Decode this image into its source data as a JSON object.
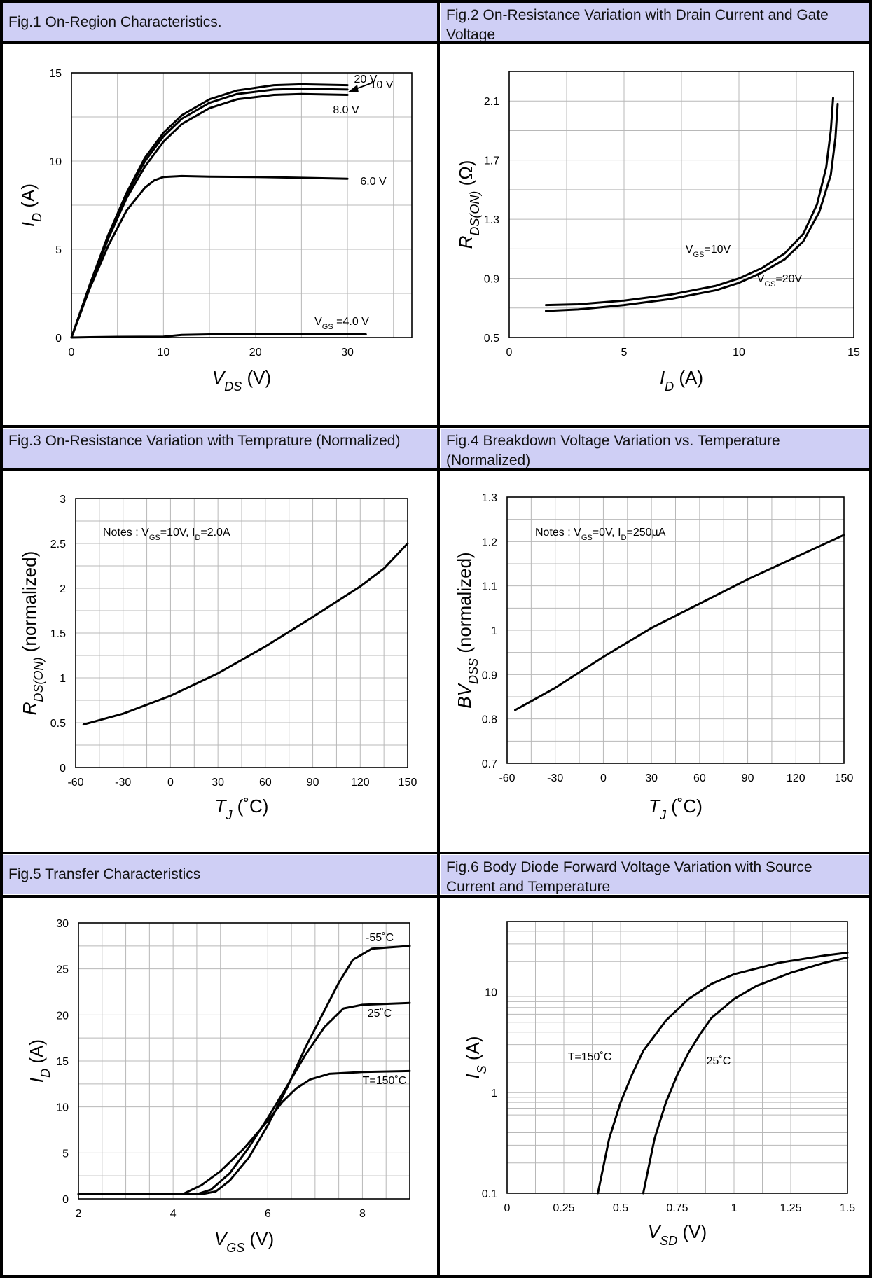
{
  "figures": [
    {
      "id": "fig1",
      "title": "Fig.1 On-Region Characteristics.",
      "chart_data": {
        "type": "line",
        "xlabel": "V_DS (V)",
        "ylabel": "I_D (A)",
        "xlim": [
          0,
          37
        ],
        "ylim": [
          0,
          15
        ],
        "x_ticks": [
          "0",
          "10",
          "20",
          "30"
        ],
        "y_ticks": [
          "0",
          "5",
          "10",
          "15"
        ],
        "grid": true,
        "series": [
          {
            "name": "20 V",
            "points": [
              [
                0,
                0
              ],
              [
                2,
                3
              ],
              [
                4,
                5.8
              ],
              [
                6,
                8.2
              ],
              [
                8,
                10.2
              ],
              [
                10,
                11.6
              ],
              [
                12,
                12.6
              ],
              [
                15,
                13.5
              ],
              [
                18,
                14
              ],
              [
                22,
                14.3
              ],
              [
                25,
                14.35
              ],
              [
                30,
                14.3
              ]
            ]
          },
          {
            "name": "10 V",
            "points": [
              [
                0,
                0
              ],
              [
                2,
                3
              ],
              [
                4,
                5.8
              ],
              [
                6,
                8.1
              ],
              [
                8,
                10
              ],
              [
                10,
                11.4
              ],
              [
                12,
                12.4
              ],
              [
                15,
                13.3
              ],
              [
                18,
                13.8
              ],
              [
                22,
                14.05
              ],
              [
                25,
                14.1
              ],
              [
                30,
                14.05
              ]
            ]
          },
          {
            "name": "8.0 V",
            "points": [
              [
                0,
                0
              ],
              [
                2,
                2.9
              ],
              [
                4,
                5.6
              ],
              [
                6,
                7.9
              ],
              [
                8,
                9.7
              ],
              [
                10,
                11.1
              ],
              [
                12,
                12.1
              ],
              [
                15,
                13
              ],
              [
                18,
                13.5
              ],
              [
                22,
                13.75
              ],
              [
                25,
                13.8
              ],
              [
                30,
                13.75
              ]
            ]
          },
          {
            "name": "6.0 V",
            "points": [
              [
                0,
                0
              ],
              [
                2,
                2.8
              ],
              [
                4,
                5.2
              ],
              [
                6,
                7.2
              ],
              [
                8,
                8.5
              ],
              [
                9,
                8.9
              ],
              [
                10,
                9.1
              ],
              [
                12,
                9.15
              ],
              [
                15,
                9.12
              ],
              [
                20,
                9.1
              ],
              [
                25,
                9.05
              ],
              [
                30,
                9
              ]
            ]
          },
          {
            "name": "V_GS =4.0 V",
            "points": [
              [
                0,
                0
              ],
              [
                2,
                0.02
              ],
              [
                5,
                0.04
              ],
              [
                10,
                0.05
              ],
              [
                12,
                0.15
              ],
              [
                15,
                0.18
              ],
              [
                20,
                0.18
              ],
              [
                32,
                0.18
              ]
            ]
          }
        ],
        "annotations": [
          "20 V",
          "10 V",
          "8.0 V",
          "6.0 V",
          "V_GS =4.0 V"
        ]
      }
    },
    {
      "id": "fig2",
      "title": "Fig.2 On-Resistance Variation with Drain Current and Gate Voltage",
      "chart_data": {
        "type": "line",
        "xlabel": "I_D (A)",
        "ylabel": "R_DS(ON) (Ω)",
        "xlim": [
          0,
          15
        ],
        "ylim": [
          0.5,
          2.3
        ],
        "x_ticks": [
          "0",
          "5",
          "10",
          "15"
        ],
        "y_ticks": [
          "0.5",
          "0.9",
          "1.3",
          "1.7",
          "2.1"
        ],
        "grid": true,
        "series": [
          {
            "name": "V_GS=10V",
            "points": [
              [
                1.6,
                0.72
              ],
              [
                3,
                0.725
              ],
              [
                5,
                0.75
              ],
              [
                7,
                0.79
              ],
              [
                9,
                0.85
              ],
              [
                10,
                0.9
              ],
              [
                11,
                0.97
              ],
              [
                12,
                1.07
              ],
              [
                12.8,
                1.2
              ],
              [
                13.4,
                1.4
              ],
              [
                13.8,
                1.65
              ],
              [
                14,
                1.9
              ],
              [
                14.1,
                2.12
              ]
            ]
          },
          {
            "name": "V_GS=20V",
            "points": [
              [
                1.6,
                0.68
              ],
              [
                3,
                0.69
              ],
              [
                5,
                0.72
              ],
              [
                7,
                0.76
              ],
              [
                9,
                0.82
              ],
              [
                10,
                0.87
              ],
              [
                11,
                0.94
              ],
              [
                12,
                1.03
              ],
              [
                12.8,
                1.15
              ],
              [
                13.5,
                1.35
              ],
              [
                14,
                1.6
              ],
              [
                14.2,
                1.85
              ],
              [
                14.3,
                2.08
              ]
            ]
          }
        ],
        "annotations": [
          "V_GS=10V",
          "V_GS=20V"
        ]
      }
    },
    {
      "id": "fig3",
      "title": "Fig.3 On-Resistance Variation with Temprature (Normalized)",
      "chart_data": {
        "type": "line",
        "xlabel": "T_J (˚C)",
        "ylabel": "R_DS(ON) (normalized)",
        "xlim": [
          -60,
          150
        ],
        "ylim": [
          0,
          3
        ],
        "x_ticks": [
          "-60",
          "-30",
          "0",
          "30",
          "60",
          "90",
          "120",
          "150"
        ],
        "y_ticks": [
          "0",
          "0.5",
          "1",
          "1.5",
          "2",
          "2.5",
          "3"
        ],
        "grid": true,
        "note": "Notes : V_GS=10V, I_D=2.0A",
        "series": [
          {
            "name": "",
            "points": [
              [
                -55,
                0.48
              ],
              [
                -30,
                0.6
              ],
              [
                0,
                0.8
              ],
              [
                30,
                1.05
              ],
              [
                60,
                1.35
              ],
              [
                90,
                1.68
              ],
              [
                120,
                2.02
              ],
              [
                135,
                2.22
              ],
              [
                150,
                2.5
              ]
            ]
          }
        ]
      }
    },
    {
      "id": "fig4",
      "title": "Fig.4 Breakdown Voltage Variation vs. Temperature (Normalized)",
      "chart_data": {
        "type": "line",
        "xlabel": "T_J (˚C)",
        "ylabel": "BV_DSS (normalized)",
        "xlim": [
          -60,
          150
        ],
        "ylim": [
          0.7,
          1.3
        ],
        "x_ticks": [
          "-60",
          "-30",
          "0",
          "30",
          "60",
          "90",
          "120",
          "150"
        ],
        "y_ticks": [
          "0.7",
          "0.8",
          "0.9",
          "1",
          "1.1",
          "1.2",
          "1.3"
        ],
        "grid": true,
        "note": "Notes : V_GS=0V, I_D=250µA",
        "series": [
          {
            "name": "",
            "points": [
              [
                -55,
                0.82
              ],
              [
                -30,
                0.87
              ],
              [
                0,
                0.94
              ],
              [
                30,
                1.005
              ],
              [
                60,
                1.06
              ],
              [
                90,
                1.115
              ],
              [
                120,
                1.165
              ],
              [
                150,
                1.215
              ]
            ]
          }
        ]
      }
    },
    {
      "id": "fig5",
      "title": "Fig.5 Transfer Characteristics",
      "chart_data": {
        "type": "line",
        "xlabel": "V_GS (V)",
        "ylabel": "I_D (A)",
        "xlim": [
          2,
          9
        ],
        "ylim": [
          0,
          30
        ],
        "x_ticks": [
          "2",
          "4",
          "6",
          "8"
        ],
        "y_ticks": [
          "0",
          "5",
          "10",
          "15",
          "20",
          "25",
          "30"
        ],
        "grid": true,
        "series": [
          {
            "name": "-55˚C",
            "points": [
              [
                2,
                0.5
              ],
              [
                4.6,
                0.5
              ],
              [
                4.9,
                0.8
              ],
              [
                5.2,
                2
              ],
              [
                5.6,
                4.5
              ],
              [
                6,
                8
              ],
              [
                6.4,
                12
              ],
              [
                6.8,
                16.5
              ],
              [
                7.2,
                20.5
              ],
              [
                7.5,
                23.5
              ],
              [
                7.8,
                26
              ],
              [
                8.2,
                27.2
              ],
              [
                9,
                27.5
              ]
            ]
          },
          {
            "name": "25˚C",
            "points": [
              [
                2,
                0.5
              ],
              [
                4.5,
                0.5
              ],
              [
                4.8,
                1
              ],
              [
                5.2,
                2.8
              ],
              [
                5.6,
                5.6
              ],
              [
                6,
                8.8
              ],
              [
                6.4,
                12.2
              ],
              [
                6.8,
                15.7
              ],
              [
                7.2,
                18.7
              ],
              [
                7.6,
                20.7
              ],
              [
                8,
                21.1
              ],
              [
                9,
                21.3
              ]
            ]
          },
          {
            "name": "T=150˚C",
            "points": [
              [
                2,
                0.5
              ],
              [
                4.2,
                0.5
              ],
              [
                4.6,
                1.5
              ],
              [
                5,
                3
              ],
              [
                5.5,
                5.5
              ],
              [
                6,
                8.5
              ],
              [
                6.3,
                10.5
              ],
              [
                6.6,
                12
              ],
              [
                6.9,
                13
              ],
              [
                7.3,
                13.6
              ],
              [
                8,
                13.8
              ],
              [
                9,
                13.9
              ]
            ]
          }
        ],
        "annotations": [
          "-55˚C",
          "25˚C",
          "T=150˚C"
        ]
      }
    },
    {
      "id": "fig6",
      "title": "Fig.6 Body Diode Forward Voltage Variation with Source Current and Temperature",
      "chart_data": {
        "type": "line",
        "xlabel": "V_SD (V)",
        "ylabel": "I_S (A)",
        "xlim": [
          0,
          1.5
        ],
        "ylim": [
          0.1,
          50
        ],
        "y_scale": "log",
        "x_ticks": [
          "0",
          "0.25",
          "0.5",
          "0.75",
          "1",
          "1.25",
          "1.5"
        ],
        "y_ticks": [
          "0.1",
          "1",
          "10"
        ],
        "grid": true,
        "series": [
          {
            "name": "T=150˚C",
            "points": [
              [
                0.4,
                0.1
              ],
              [
                0.45,
                0.35
              ],
              [
                0.5,
                0.8
              ],
              [
                0.55,
                1.5
              ],
              [
                0.6,
                2.6
              ],
              [
                0.7,
                5.2
              ],
              [
                0.8,
                8.5
              ],
              [
                0.9,
                12
              ],
              [
                1,
                15
              ],
              [
                1.2,
                19.5
              ],
              [
                1.4,
                23
              ],
              [
                1.5,
                24.5
              ]
            ]
          },
          {
            "name": "25˚C",
            "points": [
              [
                0.6,
                0.1
              ],
              [
                0.65,
                0.35
              ],
              [
                0.7,
                0.8
              ],
              [
                0.75,
                1.5
              ],
              [
                0.8,
                2.5
              ],
              [
                0.85,
                3.8
              ],
              [
                0.9,
                5.5
              ],
              [
                1,
                8.5
              ],
              [
                1.1,
                11.5
              ],
              [
                1.25,
                15.5
              ],
              [
                1.4,
                19.5
              ],
              [
                1.5,
                22
              ]
            ]
          }
        ],
        "annotations": [
          "T=150˚C",
          "25˚C"
        ]
      }
    }
  ]
}
